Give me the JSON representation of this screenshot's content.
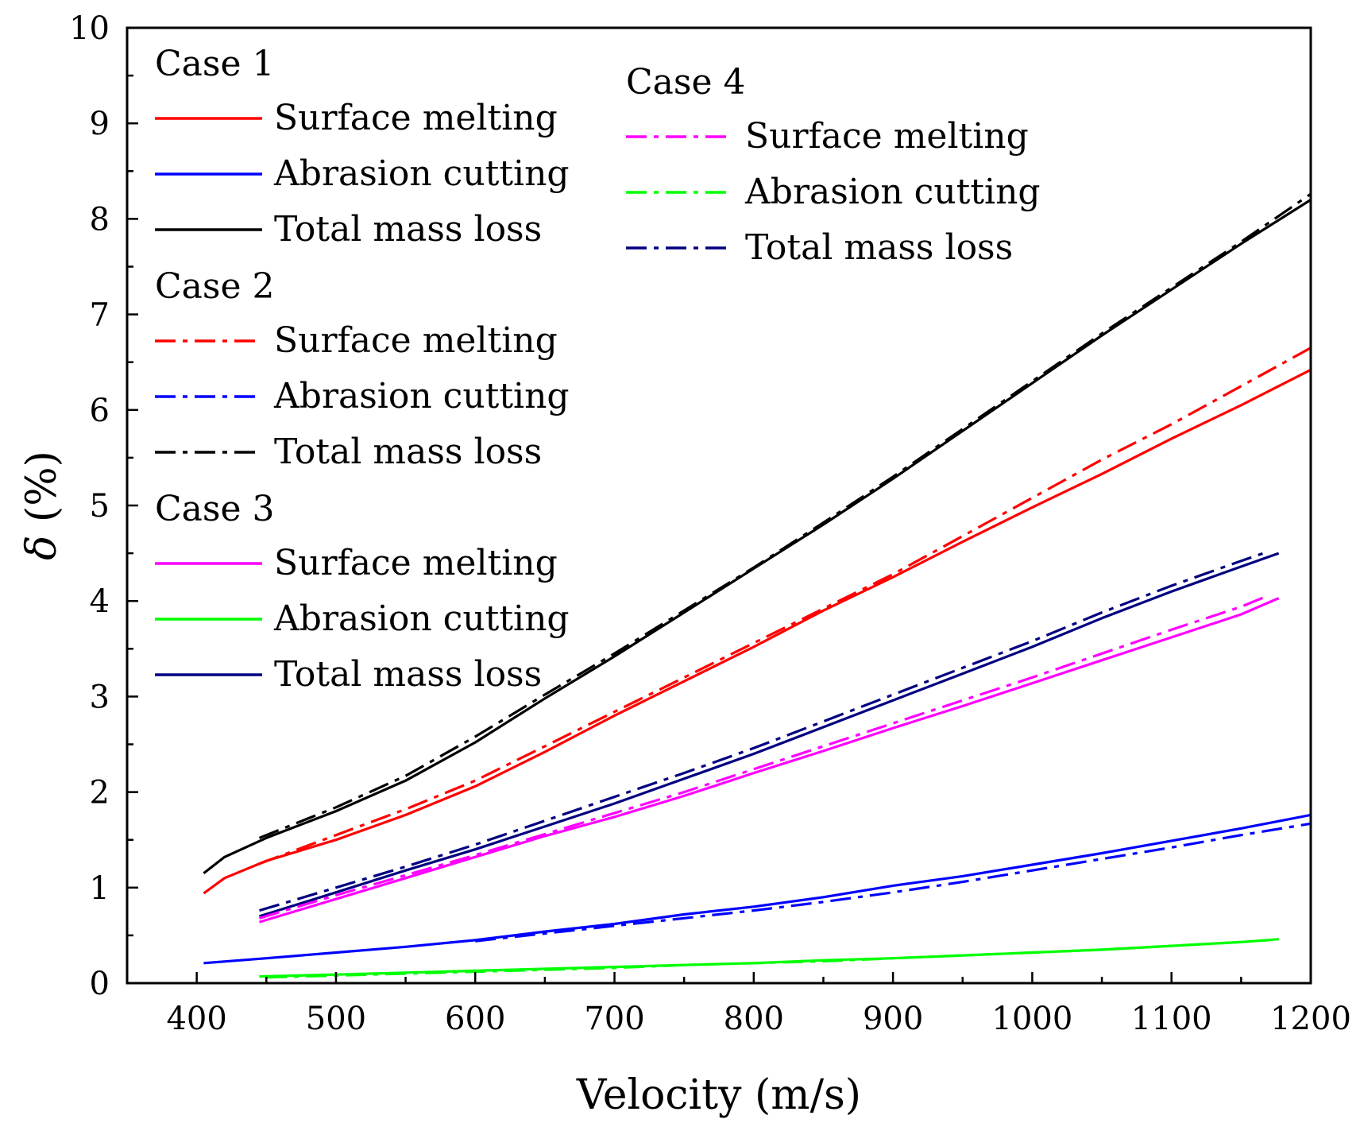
{
  "chart_data": {
    "type": "line",
    "xlabel": "Velocity (m/s)",
    "ylabel_symbol": "δ",
    "ylabel_unit": " (%)",
    "xlim": [
      350,
      1200
    ],
    "ylim": [
      0,
      10
    ],
    "x_ticks": [
      400,
      500,
      600,
      700,
      800,
      900,
      1000,
      1100,
      1200
    ],
    "y_ticks": [
      0,
      1,
      2,
      3,
      4,
      5,
      6,
      7,
      8,
      9,
      10
    ],
    "grid": false,
    "legend_groups": [
      {
        "title": "Case 1",
        "entries": [
          {
            "label": "Surface melting",
            "color": "#ff0000",
            "style": "solid"
          },
          {
            "label": "Abrasion cutting",
            "color": "#0000ff",
            "style": "solid"
          },
          {
            "label": "Total mass loss",
            "color": "#000000",
            "style": "solid"
          }
        ]
      },
      {
        "title": "Case 2",
        "entries": [
          {
            "label": "Surface melting",
            "color": "#ff0000",
            "style": "dashdot"
          },
          {
            "label": "Abrasion cutting",
            "color": "#0000ff",
            "style": "dashdot"
          },
          {
            "label": "Total mass loss",
            "color": "#000000",
            "style": "dashdot"
          }
        ]
      },
      {
        "title": "Case 3",
        "entries": [
          {
            "label": "Surface melting",
            "color": "#ff00ff",
            "style": "solid"
          },
          {
            "label": "Abrasion cutting",
            "color": "#00ff00",
            "style": "solid"
          },
          {
            "label": "Total mass loss",
            "color": "#000080",
            "style": "solid"
          }
        ]
      },
      {
        "title": "Case 4",
        "entries": [
          {
            "label": "Surface melting",
            "color": "#ff00ff",
            "style": "dashdot"
          },
          {
            "label": "Abrasion cutting",
            "color": "#00ff00",
            "style": "dashdot"
          },
          {
            "label": "Total mass loss",
            "color": "#000080",
            "style": "dashdot"
          }
        ]
      }
    ],
    "series": [
      {
        "case": "Case 1",
        "quantity": "Surface melting",
        "color": "#ff0000",
        "style": "solid",
        "x": [
          405,
          420,
          450,
          500,
          550,
          600,
          650,
          700,
          750,
          800,
          850,
          900,
          950,
          1000,
          1050,
          1100,
          1150,
          1200
        ],
        "y": [
          0.94,
          1.1,
          1.28,
          1.5,
          1.76,
          2.06,
          2.42,
          2.8,
          3.16,
          3.52,
          3.9,
          4.25,
          4.62,
          4.98,
          5.33,
          5.7,
          6.05,
          6.42
        ]
      },
      {
        "case": "Case 1",
        "quantity": "Abrasion cutting",
        "color": "#0000ff",
        "style": "solid",
        "x": [
          405,
          450,
          500,
          550,
          600,
          650,
          700,
          750,
          800,
          850,
          900,
          950,
          1000,
          1050,
          1100,
          1150,
          1200
        ],
        "y": [
          0.21,
          0.26,
          0.32,
          0.38,
          0.45,
          0.54,
          0.62,
          0.72,
          0.8,
          0.9,
          1.02,
          1.12,
          1.24,
          1.36,
          1.49,
          1.62,
          1.76
        ]
      },
      {
        "case": "Case 1",
        "quantity": "Total mass loss",
        "color": "#000000",
        "style": "solid",
        "x": [
          405,
          420,
          450,
          500,
          550,
          600,
          650,
          700,
          750,
          800,
          850,
          900,
          950,
          1000,
          1050,
          1100,
          1150,
          1200
        ],
        "y": [
          1.15,
          1.32,
          1.52,
          1.8,
          2.12,
          2.52,
          2.98,
          3.42,
          3.88,
          4.34,
          4.8,
          5.28,
          5.78,
          6.28,
          6.78,
          7.26,
          7.74,
          8.2
        ]
      },
      {
        "case": "Case 2",
        "quantity": "Surface melting",
        "color": "#ff0000",
        "style": "dashdot",
        "x": [
          445,
          500,
          550,
          600,
          650,
          700,
          750,
          800,
          850,
          900,
          950,
          1000,
          1050,
          1100,
          1150,
          1200
        ],
        "y": [
          1.25,
          1.55,
          1.82,
          2.12,
          2.48,
          2.84,
          3.2,
          3.56,
          3.92,
          4.28,
          4.68,
          5.08,
          5.48,
          5.85,
          6.25,
          6.65
        ]
      },
      {
        "case": "Case 2",
        "quantity": "Abrasion cutting",
        "color": "#0000ff",
        "style": "dashdot",
        "x": [
          600,
          650,
          700,
          750,
          800,
          850,
          900,
          950,
          1000,
          1050,
          1100,
          1150,
          1200
        ],
        "y": [
          0.44,
          0.52,
          0.6,
          0.68,
          0.76,
          0.85,
          0.95,
          1.06,
          1.18,
          1.3,
          1.42,
          1.55,
          1.67
        ]
      },
      {
        "case": "Case 2",
        "quantity": "Total mass loss",
        "color": "#000000",
        "style": "dashdot",
        "x": [
          445,
          500,
          550,
          600,
          650,
          700,
          750,
          800,
          850,
          900,
          950,
          1000,
          1050,
          1100,
          1150,
          1200
        ],
        "y": [
          1.52,
          1.84,
          2.17,
          2.58,
          3.02,
          3.45,
          3.9,
          4.35,
          4.82,
          5.3,
          5.8,
          6.3,
          6.8,
          7.28,
          7.76,
          8.26
        ]
      },
      {
        "case": "Case 3",
        "quantity": "Surface melting",
        "color": "#ff00ff",
        "style": "solid",
        "x": [
          445,
          500,
          550,
          600,
          650,
          700,
          750,
          800,
          850,
          900,
          950,
          1000,
          1050,
          1100,
          1150,
          1177
        ],
        "y": [
          0.64,
          0.88,
          1.1,
          1.32,
          1.54,
          1.74,
          1.96,
          2.2,
          2.43,
          2.67,
          2.9,
          3.14,
          3.38,
          3.62,
          3.86,
          4.03
        ]
      },
      {
        "case": "Case 3",
        "quantity": "Abrasion cutting",
        "color": "#00ff00",
        "style": "solid",
        "x": [
          445,
          500,
          550,
          600,
          650,
          700,
          750,
          800,
          850,
          900,
          950,
          1000,
          1050,
          1100,
          1150,
          1177
        ],
        "y": [
          0.07,
          0.09,
          0.11,
          0.13,
          0.15,
          0.17,
          0.19,
          0.21,
          0.24,
          0.26,
          0.29,
          0.32,
          0.35,
          0.39,
          0.43,
          0.46
        ]
      },
      {
        "case": "Case 3",
        "quantity": "Total mass loss",
        "color": "#000080",
        "style": "solid",
        "x": [
          445,
          500,
          550,
          600,
          650,
          700,
          750,
          800,
          850,
          900,
          950,
          1000,
          1050,
          1100,
          1150,
          1177
        ],
        "y": [
          0.7,
          0.95,
          1.18,
          1.4,
          1.64,
          1.88,
          2.14,
          2.4,
          2.68,
          2.96,
          3.24,
          3.52,
          3.82,
          4.1,
          4.36,
          4.5
        ]
      },
      {
        "case": "Case 4",
        "quantity": "Surface melting",
        "color": "#ff00ff",
        "style": "dashdot",
        "x": [
          445,
          500,
          550,
          600,
          650,
          700,
          750,
          800,
          850,
          900,
          950,
          1000,
          1050,
          1100,
          1150,
          1170
        ],
        "y": [
          0.68,
          0.92,
          1.13,
          1.34,
          1.56,
          1.78,
          2.0,
          2.24,
          2.48,
          2.72,
          2.96,
          3.2,
          3.45,
          3.7,
          3.94,
          4.06
        ]
      },
      {
        "case": "Case 4",
        "quantity": "Abrasion cutting",
        "color": "#00ff00",
        "style": "dashdot",
        "x": [
          450,
          500,
          550,
          600,
          650,
          700,
          750,
          800,
          850,
          900,
          950,
          1000,
          1050,
          1100,
          1150,
          1170
        ],
        "y": [
          0.06,
          0.08,
          0.1,
          0.12,
          0.14,
          0.16,
          0.19,
          0.21,
          0.23,
          0.26,
          0.29,
          0.32,
          0.35,
          0.39,
          0.43,
          0.45
        ]
      },
      {
        "case": "Case 4",
        "quantity": "Total mass loss",
        "color": "#000080",
        "style": "dashdot",
        "x": [
          445,
          500,
          550,
          600,
          650,
          700,
          750,
          800,
          850,
          900,
          950,
          1000,
          1050,
          1100,
          1150,
          1170
        ],
        "y": [
          0.76,
          1.0,
          1.22,
          1.45,
          1.7,
          1.95,
          2.2,
          2.46,
          2.74,
          3.02,
          3.3,
          3.58,
          3.88,
          4.16,
          4.42,
          4.52
        ]
      }
    ]
  }
}
